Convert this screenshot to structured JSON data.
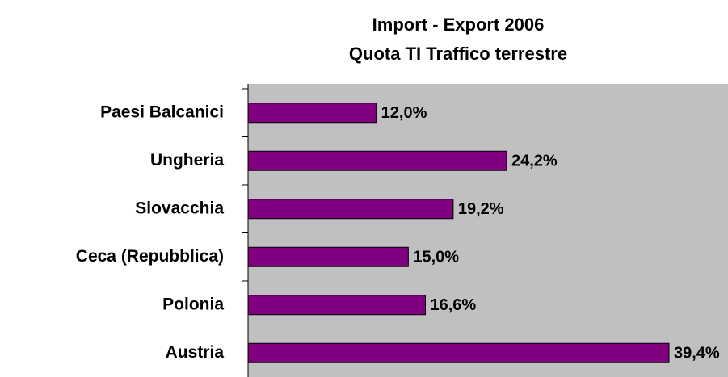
{
  "chart_data": {
    "type": "hbar",
    "title": "Import - Export 2006",
    "subtitle": "Quota TI Traffico terrestre",
    "categories": [
      "Paesi Balcanici",
      "Ungheria",
      "Slovacchia",
      "Ceca (Repubblica)",
      "Polonia",
      "Austria"
    ],
    "values": [
      12.0,
      24.2,
      19.2,
      15.0,
      16.6,
      39.4
    ],
    "value_labels": [
      "12,0%",
      "24,2%",
      "19,2%",
      "15,0%",
      "16,6%",
      "39,4%"
    ],
    "color": "#800080"
  }
}
